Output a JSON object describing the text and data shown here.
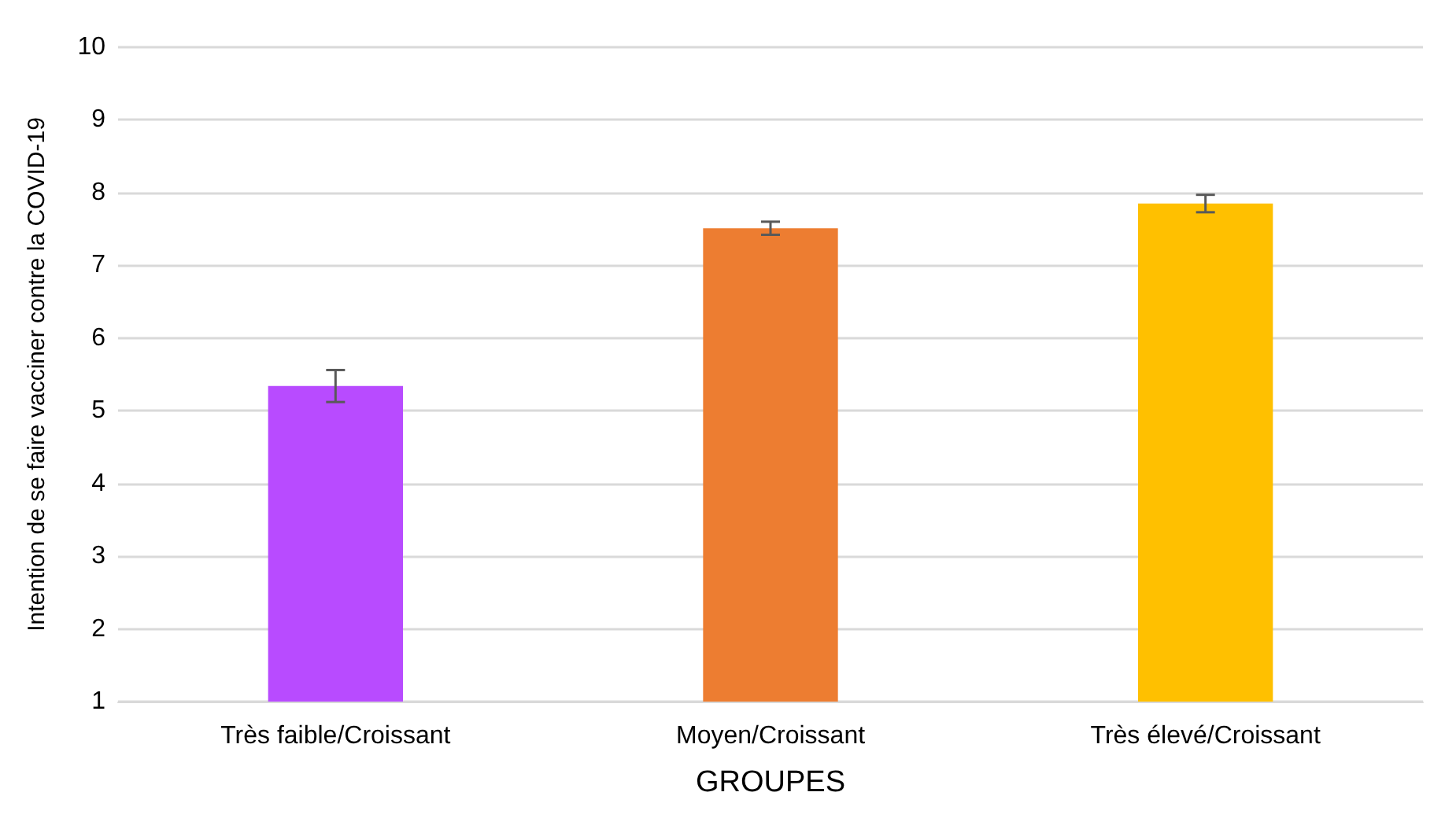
{
  "chart_data": {
    "type": "bar",
    "xlabel": "GROUPES",
    "ylabel": "Intention de se faire vacciner contre la COVID-19",
    "categories": [
      "Très faible/Croissant",
      "Moyen/Croissant",
      "Très élevé/Croissant"
    ],
    "values": [
      5.34,
      7.51,
      7.85
    ],
    "colors": [
      "#b84bff",
      "#ed7d31",
      "#ffc000"
    ],
    "errors": [
      0.22,
      0.09,
      0.12
    ],
    "ylim": [
      1,
      10
    ],
    "yticks": [
      1,
      2,
      3,
      4,
      5,
      6,
      7,
      8,
      9,
      10
    ],
    "grid": "y"
  }
}
